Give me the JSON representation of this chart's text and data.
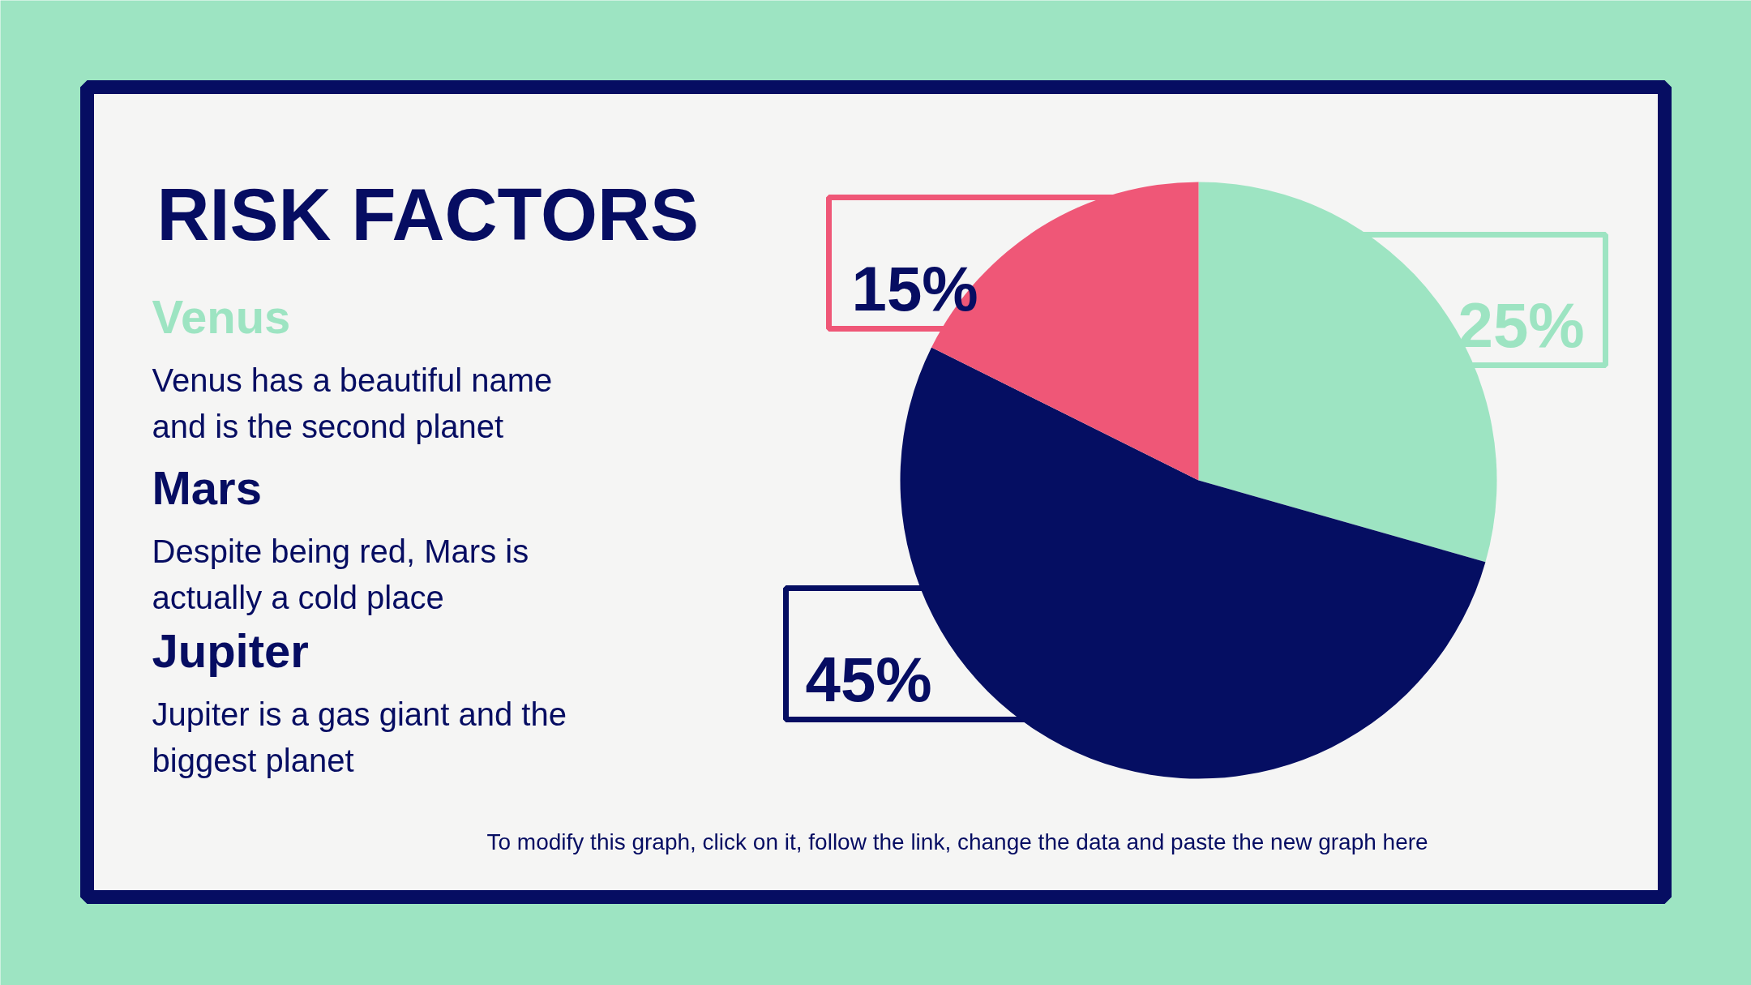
{
  "chart_data": {
    "type": "pie",
    "title": "RISK FACTORS",
    "categories": [
      null,
      null,
      null
    ],
    "values": [
      25,
      45,
      15
    ],
    "colors": [
      "#9de4c2",
      "#050e62",
      "#ef5777"
    ],
    "value_labels": [
      "25%",
      "45%",
      "15%"
    ],
    "annotations": [
      "Venus",
      "Venus has a beautiful name\nand is the second planet",
      "Mars",
      "Despite being red, Mars is\nactually a cold place",
      "Jupiter",
      "Jupiter is a gas giant and the\nbiggest planet",
      "To modify this graph, click on it, follow the link, change the data and paste the new graph here"
    ]
  }
}
